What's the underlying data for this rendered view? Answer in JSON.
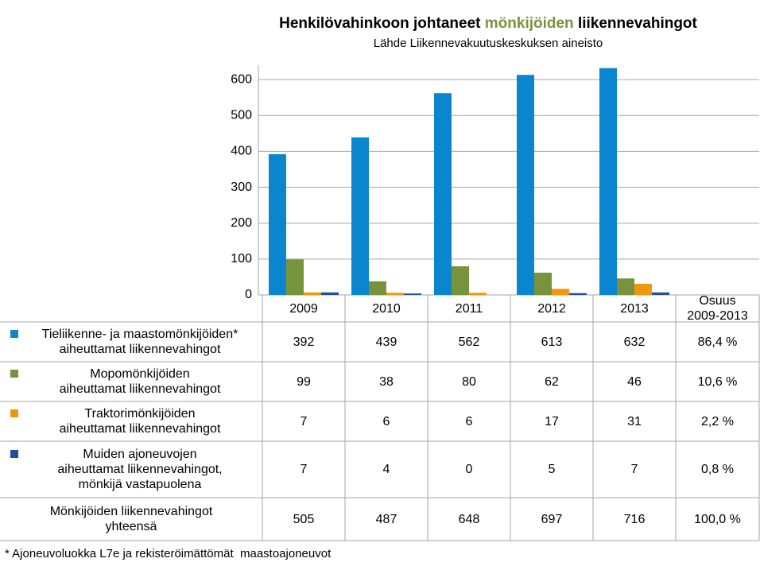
{
  "chart_data": {
    "type": "bar",
    "title": [
      "Henkilövahinkoon johtaneet ",
      "mönkijöiden ",
      "liikennevahingot"
    ],
    "title_colors": [
      "#000000",
      "#77933c",
      "#000000"
    ],
    "subtitle": "Lähde Liikennevakuutuskeskuksen aineisto",
    "categories": [
      "2009",
      "2010",
      "2011",
      "2012",
      "2013"
    ],
    "series": [
      {
        "name": "Tieliikenne- ja maastomönkijöiden*\naiheuttamat liikennevahingot",
        "color": "#0a86cf",
        "values": [
          392,
          439,
          562,
          613,
          632
        ],
        "share": "86,4 %"
      },
      {
        "name": "Mopomönkijöiden\naiheuttamat liikennevahingot",
        "color": "#77933c",
        "values": [
          99,
          38,
          80,
          62,
          46
        ],
        "share": "10,6 %"
      },
      {
        "name": "Traktorimönkijöiden\naiheuttamat liikennevahingot",
        "color": "#f0960f",
        "values": [
          7,
          6,
          6,
          17,
          31
        ],
        "share": "2,2 %"
      },
      {
        "name": "Muiden ajoneuvojen\naiheuttamat liikennevahingot,\nmönkijä vastapuolena",
        "color": "#1f4fa0",
        "values": [
          7,
          4,
          0,
          5,
          7
        ],
        "share": "0,8 %"
      }
    ],
    "share_header": "Osuus\n2009-2013",
    "total": {
      "name": "Mönkijöiden liikennevahingot\nyhteensä",
      "values": [
        505,
        487,
        648,
        697,
        716
      ],
      "share": "100,0 %"
    },
    "ylim": [
      0,
      640
    ],
    "yticks": [
      0,
      100,
      200,
      300,
      400,
      500,
      600
    ],
    "grid": true,
    "footnote": "* Ajoneuvoluokka L7e ja rekisteröimättömät  maastoajoneuvot"
  }
}
